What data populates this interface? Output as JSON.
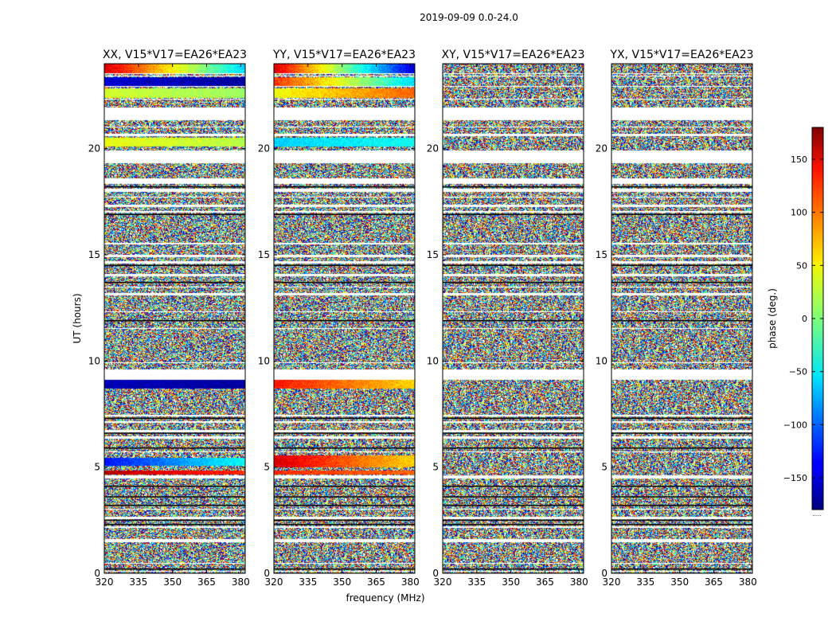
{
  "chart_data": {
    "type": "heatmap",
    "suptitle": "2019-09-09 0.0-24.0",
    "xlabel": "frequency (MHz)",
    "ylabel": "UT (hours)",
    "xlim": [
      320,
      382
    ],
    "ylim": [
      0,
      24
    ],
    "xticks": [
      320,
      335,
      350,
      365,
      380
    ],
    "yticks": [
      0,
      5,
      10,
      15,
      20
    ],
    "panels": [
      {
        "title": "XX, V15*V17=EA26*EA23",
        "coherent_bands": [
          {
            "t0": 23.55,
            "t1": 24.0,
            "phase_start": 150,
            "phase_end": -60
          },
          {
            "t0": 22.95,
            "t1": 23.35,
            "phase_start": -150,
            "phase_end": -170
          },
          {
            "t0": 22.4,
            "t1": 22.85,
            "phase_start": 30,
            "phase_end": 10
          },
          {
            "t0": 20.1,
            "t1": 20.5,
            "phase_start": 40,
            "phase_end": 20
          },
          {
            "t0": 8.7,
            "t1": 9.1,
            "phase_start": -160,
            "phase_end": -170
          },
          {
            "t0": 5.05,
            "t1": 5.45,
            "phase_start": -130,
            "phase_end": -40
          },
          {
            "t0": 4.65,
            "t1": 4.85,
            "phase_start": 160,
            "phase_end": 120
          }
        ]
      },
      {
        "title": "YY, V15*V17=EA26*EA23",
        "coherent_bands": [
          {
            "t0": 23.55,
            "t1": 24.0,
            "phase_start": 150,
            "phase_end": -150
          },
          {
            "t0": 22.95,
            "t1": 23.35,
            "phase_start": 120,
            "phase_end": -60
          },
          {
            "t0": 22.4,
            "t1": 22.85,
            "phase_start": 40,
            "phase_end": 100
          },
          {
            "t0": 20.1,
            "t1": 20.5,
            "phase_start": -60,
            "phase_end": -40
          },
          {
            "t0": 8.7,
            "t1": 9.1,
            "phase_start": 130,
            "phase_end": 60
          },
          {
            "t0": 5.0,
            "t1": 5.55,
            "phase_start": 150,
            "phase_end": 60
          },
          {
            "t0": 4.65,
            "t1": 4.85,
            "phase_start": 120,
            "phase_end": 100
          }
        ]
      },
      {
        "title": "XY, V15*V17=EA26*EA23",
        "coherent_bands": []
      },
      {
        "title": "YX, V15*V17=EA26*EA23",
        "coherent_bands": []
      }
    ],
    "flagged_ranges": [
      [
        0.08,
        0.12
      ],
      [
        0.45,
        0.5
      ],
      [
        1.45,
        1.6
      ],
      [
        2.15,
        2.2
      ],
      [
        2.55,
        2.65
      ],
      [
        3.0,
        3.05
      ],
      [
        4.45,
        4.6
      ],
      [
        5.7,
        5.75
      ],
      [
        6.35,
        6.45
      ],
      [
        6.65,
        6.75
      ],
      [
        7.1,
        7.15
      ],
      [
        7.4,
        7.45
      ],
      [
        9.1,
        9.6
      ],
      [
        9.9,
        9.95
      ],
      [
        11.5,
        11.55
      ],
      [
        12.3,
        12.35
      ],
      [
        13.1,
        13.2
      ],
      [
        13.45,
        13.5
      ],
      [
        14.0,
        14.1
      ],
      [
        14.6,
        14.7
      ],
      [
        14.9,
        15.0
      ],
      [
        15.5,
        15.55
      ],
      [
        17.0,
        17.05
      ],
      [
        17.25,
        17.35
      ],
      [
        17.7,
        17.75
      ],
      [
        17.95,
        18.1
      ],
      [
        18.35,
        18.6
      ],
      [
        19.3,
        19.9
      ],
      [
        20.6,
        20.7
      ],
      [
        21.0,
        21.05
      ],
      [
        21.35,
        21.95
      ],
      [
        22.3,
        22.35
      ],
      [
        22.9,
        22.95
      ],
      [
        23.4,
        23.45
      ],
      [
        23.5,
        23.55
      ]
    ],
    "dark_lines": [
      0.2,
      2.3,
      2.5,
      3.2,
      3.6,
      4.1,
      5.9,
      6.6,
      7.3,
      11.9,
      13.7,
      14.5,
      16.9,
      18.2
    ],
    "colorbar": {
      "label": "phase (deg.)",
      "range": [
        -180,
        180
      ],
      "ticks": [
        150,
        100,
        50,
        0,
        -50,
        -100,
        -150
      ],
      "tick_labels": [
        "150",
        "100",
        "50",
        "0",
        "−50",
        "−100",
        "−150"
      ],
      "footer": "....."
    }
  }
}
